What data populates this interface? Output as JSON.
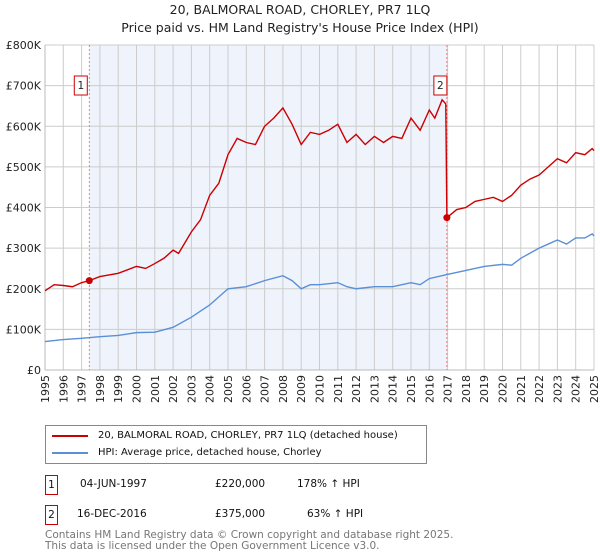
{
  "chart_data": {
    "type": "line",
    "title": "20, BALMORAL ROAD, CHORLEY, PR7 1LQ",
    "subtitle": "Price paid vs. HM Land Registry's House Price Index (HPI)",
    "xlim": [
      1995,
      2025
    ],
    "ylim": [
      0,
      800000
    ],
    "x_ticks": [
      "1995",
      "1996",
      "1997",
      "1998",
      "1999",
      "2000",
      "2001",
      "2002",
      "2003",
      "2004",
      "2005",
      "2006",
      "2007",
      "2008",
      "2009",
      "2010",
      "2011",
      "2012",
      "2013",
      "2014",
      "2015",
      "2016",
      "2017",
      "2018",
      "2019",
      "2020",
      "2021",
      "2022",
      "2023",
      "2024",
      "2025"
    ],
    "y_ticks": [
      {
        "v": 0,
        "label": "£0"
      },
      {
        "v": 100000,
        "label": "£100K"
      },
      {
        "v": 200000,
        "label": "£200K"
      },
      {
        "v": 300000,
        "label": "£300K"
      },
      {
        "v": 400000,
        "label": "£400K"
      },
      {
        "v": 500000,
        "label": "£500K"
      },
      {
        "v": 600000,
        "label": "£600K"
      },
      {
        "v": 700000,
        "label": "£700K"
      },
      {
        "v": 800000,
        "label": "£800K"
      }
    ],
    "grid": true,
    "shaded_range": [
      1997.42,
      2016.96
    ],
    "series": [
      {
        "name": "20, BALMORAL ROAD, CHORLEY, PR7 1LQ (detached house)",
        "color": "#cc0000",
        "x": [
          1995,
          1995.5,
          1996,
          1996.5,
          1997,
          1997.42,
          1998,
          1999,
          2000,
          2000.5,
          2001,
          2001.5,
          2002,
          2002.3,
          2003,
          2003.5,
          2004,
          2004.5,
          2005,
          2005.5,
          2006,
          2006.5,
          2007,
          2007.5,
          2008,
          2008.5,
          2009,
          2009.5,
          2010,
          2010.5,
          2011,
          2011.5,
          2012,
          2012.5,
          2013,
          2013.5,
          2014,
          2014.5,
          2015,
          2015.5,
          2016,
          2016.3,
          2016.7,
          2016.9,
          2016.96,
          2017.5,
          2018,
          2018.5,
          2019,
          2019.5,
          2020,
          2020.5,
          2021,
          2021.5,
          2022,
          2022.5,
          2023,
          2023.5,
          2024,
          2024.5,
          2024.9,
          2025
        ],
        "values": [
          195000,
          210000,
          208000,
          205000,
          215000,
          220000,
          230000,
          238000,
          255000,
          250000,
          262000,
          275000,
          295000,
          287000,
          340000,
          370000,
          430000,
          460000,
          530000,
          570000,
          560000,
          555000,
          600000,
          620000,
          645000,
          605000,
          555000,
          585000,
          580000,
          590000,
          605000,
          560000,
          580000,
          555000,
          575000,
          560000,
          575000,
          570000,
          620000,
          590000,
          640000,
          620000,
          665000,
          655000,
          375000,
          395000,
          400000,
          415000,
          420000,
          425000,
          415000,
          430000,
          455000,
          470000,
          480000,
          500000,
          520000,
          510000,
          535000,
          530000,
          545000,
          540000
        ]
      },
      {
        "name": "HPI: Average price, detached house, Chorley",
        "color": "#5b8fd6",
        "x": [
          1995,
          1996,
          1997,
          1998,
          1999,
          2000,
          2001,
          2002,
          2003,
          2004,
          2005,
          2006,
          2007,
          2008,
          2008.5,
          2009,
          2009.5,
          2010,
          2011,
          2011.5,
          2012,
          2013,
          2014,
          2015,
          2015.5,
          2016,
          2016.96,
          2018,
          2019,
          2020,
          2020.5,
          2021,
          2022,
          2022.5,
          2023,
          2023.5,
          2024,
          2024.5,
          2024.9,
          2025
        ],
        "values": [
          70000,
          75000,
          78000,
          82000,
          85000,
          92000,
          93000,
          105000,
          130000,
          160000,
          200000,
          205000,
          220000,
          232000,
          220000,
          200000,
          210000,
          210000,
          215000,
          205000,
          200000,
          205000,
          205000,
          215000,
          210000,
          225000,
          235000,
          245000,
          255000,
          260000,
          258000,
          275000,
          300000,
          310000,
          320000,
          310000,
          325000,
          325000,
          335000,
          330000
        ]
      }
    ],
    "sales": [
      {
        "label": "1",
        "x": 1997.42,
        "value": 220000,
        "date": "04-JUN-1997",
        "price": "£220,000",
        "hpi": "178% ↑ HPI"
      },
      {
        "label": "2",
        "x": 2016.96,
        "value": 375000,
        "date": "16-DEC-2016",
        "price": "£375,000",
        "hpi": "63% ↑ HPI"
      }
    ]
  },
  "footer": {
    "line1": "Contains HM Land Registry data © Crown copyright and database right 2025.",
    "line2": "This data is licensed under the Open Government Licence v3.0."
  }
}
